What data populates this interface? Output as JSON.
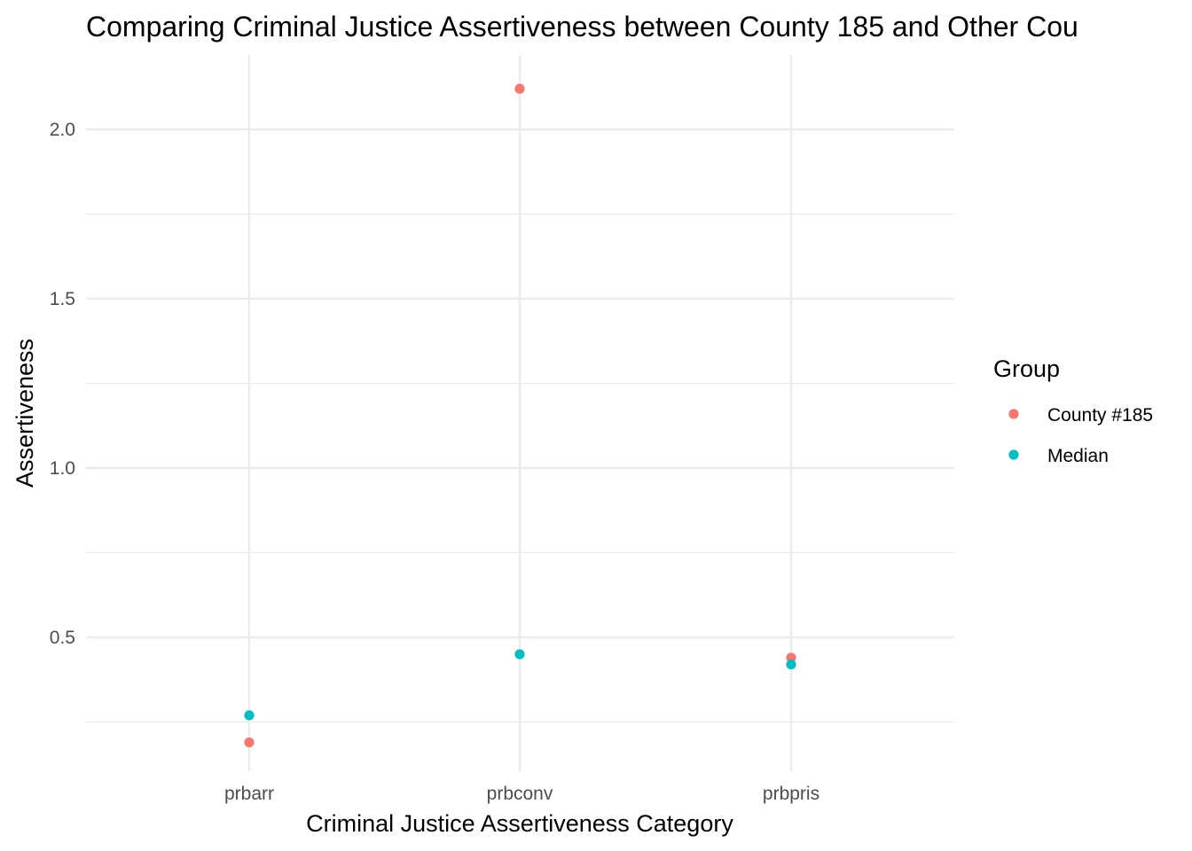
{
  "chart_data": {
    "type": "scatter",
    "title": "Comparing Criminal Justice Assertiveness between County 185 and Other Cou",
    "xlabel": "Criminal Justice Assertiveness Category",
    "ylabel": "Assertiveness",
    "categories": [
      "prbarr",
      "prbconv",
      "prbpris"
    ],
    "ylim": [
      0.1,
      2.2
    ],
    "y_ticks": [
      0.5,
      1.0,
      1.5,
      2.0
    ],
    "y_tick_labels": [
      "0.5",
      "1.0",
      "1.5",
      "2.0"
    ],
    "y_minor_ticks": [
      0.25,
      0.75,
      1.25,
      1.75
    ],
    "grid": true,
    "legend": {
      "title": "Group",
      "position": "right"
    },
    "series": [
      {
        "name": "County #185",
        "color": "#F8766D",
        "values": [
          0.19,
          2.12,
          0.44
        ]
      },
      {
        "name": "Median",
        "color": "#00BFC4",
        "values": [
          0.27,
          0.45,
          0.42
        ]
      }
    ]
  }
}
